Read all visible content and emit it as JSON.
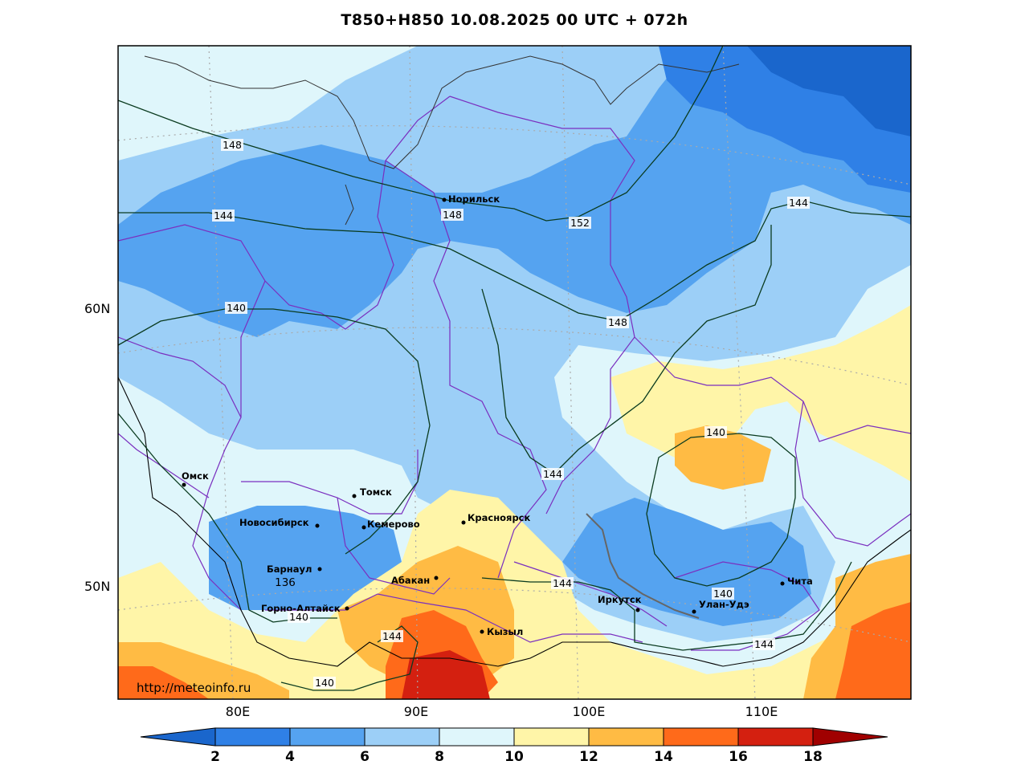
{
  "title": "T850+H850 10.08.2025 00 UTC + 072h",
  "watermark": "http://meteoinfo.ru",
  "lat_labels": [
    "60N",
    "50N"
  ],
  "lon_labels": [
    "80E",
    "90E",
    "100E",
    "110E"
  ],
  "colorbar": {
    "ticks": [
      "2",
      "4",
      "6",
      "8",
      "10",
      "12",
      "14",
      "16",
      "18"
    ],
    "colors": [
      "#1a66cc",
      "#2f80e6",
      "#55a3f0",
      "#9ccff7",
      "#dff6fb",
      "#fff5a8",
      "#ffbb44",
      "#ff6a1a",
      "#d42010",
      "#a00000"
    ]
  },
  "cities": [
    {
      "name": "Норильск"
    },
    {
      "name": "Омск"
    },
    {
      "name": "Томск"
    },
    {
      "name": "Новосибирск"
    },
    {
      "name": "Кемерово"
    },
    {
      "name": "Красноярск"
    },
    {
      "name": "Барнаул"
    },
    {
      "name": "Абакан"
    },
    {
      "name": "Горно-Алтайск"
    },
    {
      "name": "Кызыл"
    },
    {
      "name": "Иркутск"
    },
    {
      "name": "Улан-Удэ"
    },
    {
      "name": "Чита"
    }
  ],
  "contour_labels": [
    "148",
    "144",
    "148",
    "152",
    "144",
    "140",
    "148",
    "140",
    "144",
    "144",
    "140",
    "136",
    "140",
    "144",
    "144",
    "140",
    "144"
  ]
}
